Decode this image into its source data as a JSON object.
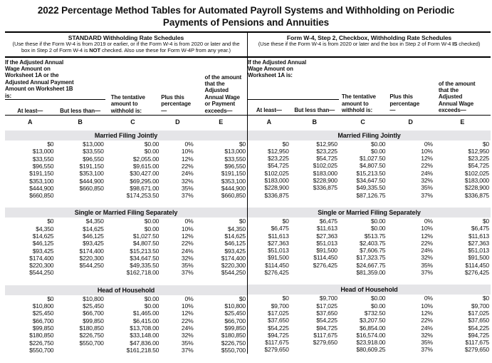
{
  "title": {
    "line1": "2022 Percentage Method Tables for Automated Payroll Systems and Withholding on Periodic",
    "line2": "Payments of Pensions and Annuities"
  },
  "column_letters": [
    "A",
    "B",
    "C",
    "D",
    "E"
  ],
  "left": {
    "band_title": "STANDARD Withholding Rate Schedules",
    "band_sub_pre": "(Use these if the Form W-4 is from 2019 or earlier, or if the Form W-4 is from 2020 or later and the box in Step 2 of Form W-4 is ",
    "band_sub_bold": "NOT",
    "band_sub_post": " checked. Also use these for Form W-4P from any year.)",
    "intro": "If the Adjusted Annual Wage Amount on Worksheet 1A or the Adjusted Annual Payment Amount on Worksheet 1B is:",
    "col_at_least": "At least—",
    "col_but_less": "But less than—",
    "col_tentative": "The tentative amount to withhold is:",
    "col_percentage": "Plus this percentage—",
    "col_exceeds": "of the amount that the Adjusted Annual Wage or Payment exceeds—",
    "sections": [
      {
        "name": "Married Filing Jointly",
        "rows": [
          [
            "$0",
            "$13,000",
            "$0.00",
            "0%",
            "$0"
          ],
          [
            "$13,000",
            "$33,550",
            "$0.00",
            "10%",
            "$13,000"
          ],
          [
            "$33,550",
            "$96,550",
            "$2,055.00",
            "12%",
            "$33,550"
          ],
          [
            "$96,550",
            "$191,150",
            "$9,615.00",
            "22%",
            "$96,550"
          ],
          [
            "$191,150",
            "$353,100",
            "$30,427.00",
            "24%",
            "$191,150"
          ],
          [
            "$353,100",
            "$444,900",
            "$69,295.00",
            "32%",
            "$353,100"
          ],
          [
            "$444,900",
            "$660,850",
            "$98,671.00",
            "35%",
            "$444,900"
          ],
          [
            "$660,850",
            "",
            "$174,253.50",
            "37%",
            "$660,850"
          ]
        ]
      },
      {
        "name": "Single or Married Filing Separately",
        "rows": [
          [
            "$0",
            "$4,350",
            "$0.00",
            "0%",
            "$0"
          ],
          [
            "$4,350",
            "$14,625",
            "$0.00",
            "10%",
            "$4,350"
          ],
          [
            "$14,625",
            "$46,125",
            "$1,027.50",
            "12%",
            "$14,625"
          ],
          [
            "$46,125",
            "$93,425",
            "$4,807.50",
            "22%",
            "$46,125"
          ],
          [
            "$93,425",
            "$174,400",
            "$15,213.50",
            "24%",
            "$93,425"
          ],
          [
            "$174,400",
            "$220,300",
            "$34,647.50",
            "32%",
            "$174,400"
          ],
          [
            "$220,300",
            "$544,250",
            "$49,335.50",
            "35%",
            "$220,300"
          ],
          [
            "$544,250",
            "",
            "$162,718.00",
            "37%",
            "$544,250"
          ]
        ]
      },
      {
        "name": "Head of Household",
        "rows": [
          [
            "$0",
            "$10,800",
            "$0.00",
            "0%",
            "$0"
          ],
          [
            "$10,800",
            "$25,450",
            "$0.00",
            "10%",
            "$10,800"
          ],
          [
            "$25,450",
            "$66,700",
            "$1,465.00",
            "12%",
            "$25,450"
          ],
          [
            "$66,700",
            "$99,850",
            "$6,415.00",
            "22%",
            "$66,700"
          ],
          [
            "$99,850",
            "$180,850",
            "$13,708.00",
            "24%",
            "$99,850"
          ],
          [
            "$180,850",
            "$226,750",
            "$33,148.00",
            "32%",
            "$180,850"
          ],
          [
            "$226,750",
            "$550,700",
            "$47,836.00",
            "35%",
            "$226,750"
          ],
          [
            "$550,700",
            "",
            "$161,218.50",
            "37%",
            "$550,700"
          ]
        ]
      }
    ]
  },
  "right": {
    "band_title": "Form W-4, Step 2, Checkbox, Withholding Rate Schedules",
    "band_sub_pre": "(Use these if the Form W-4 is from 2020 or later and the box in Step 2 of Form W-4 ",
    "band_sub_bold": "IS",
    "band_sub_post": " checked)",
    "intro": "If the Adjusted Annual Wage Amount on Worksheet 1A is:",
    "col_at_least": "At least—",
    "col_but_less": "But less than—",
    "col_tentative": "The tentative amount to withhold is:",
    "col_percentage": "Plus this percentage—",
    "col_exceeds": "of the amount that the Adjusted Annual Wage exceeds—",
    "sections": [
      {
        "name": "Married Filing Jointly",
        "rows": [
          [
            "$0",
            "$12,950",
            "$0.00",
            "0%",
            "$0"
          ],
          [
            "$12,950",
            "$23,225",
            "$0.00",
            "10%",
            "$12,950"
          ],
          [
            "$23,225",
            "$54,725",
            "$1,027.50",
            "12%",
            "$23,225"
          ],
          [
            "$54,725",
            "$102,025",
            "$4,807.50",
            "22%",
            "$54,725"
          ],
          [
            "$102,025",
            "$183,000",
            "$15,213.50",
            "24%",
            "$102,025"
          ],
          [
            "$183,000",
            "$228,900",
            "$34,647.50",
            "32%",
            "$183,000"
          ],
          [
            "$228,900",
            "$336,875",
            "$49,335.50",
            "35%",
            "$228,900"
          ],
          [
            "$336,875",
            "",
            "$87,126.75",
            "37%",
            "$336,875"
          ]
        ]
      },
      {
        "name": "Single or Married Filing Separately",
        "rows": [
          [
            "$0",
            "$6,475",
            "$0.00",
            "0%",
            "$0"
          ],
          [
            "$6,475",
            "$11,613",
            "$0.00",
            "10%",
            "$6,475"
          ],
          [
            "$11,613",
            "$27,363",
            "$513.75",
            "12%",
            "$11,613"
          ],
          [
            "$27,363",
            "$51,013",
            "$2,403.75",
            "22%",
            "$27,363"
          ],
          [
            "$51,013",
            "$91,500",
            "$7,606.75",
            "24%",
            "$51,013"
          ],
          [
            "$91,500",
            "$114,450",
            "$17,323.75",
            "32%",
            "$91,500"
          ],
          [
            "$114,450",
            "$276,425",
            "$24,667.75",
            "35%",
            "$114,450"
          ],
          [
            "$276,425",
            "",
            "$81,359.00",
            "37%",
            "$276,425"
          ]
        ]
      },
      {
        "name": "Head of Household",
        "rows": [
          [
            "$0",
            "$9,700",
            "$0.00",
            "0%",
            "$0"
          ],
          [
            "$9,700",
            "$17,025",
            "$0.00",
            "10%",
            "$9,700"
          ],
          [
            "$17,025",
            "$37,650",
            "$732.50",
            "12%",
            "$17,025"
          ],
          [
            "$37,650",
            "$54,225",
            "$3,207.50",
            "22%",
            "$37,650"
          ],
          [
            "$54,225",
            "$94,725",
            "$6,854.00",
            "24%",
            "$54,225"
          ],
          [
            "$94,725",
            "$117,675",
            "$16,574.00",
            "32%",
            "$94,725"
          ],
          [
            "$117,675",
            "$279,650",
            "$23,918.00",
            "35%",
            "$117,675"
          ],
          [
            "$279,650",
            "",
            "$80,609.25",
            "37%",
            "$279,650"
          ]
        ]
      }
    ]
  }
}
